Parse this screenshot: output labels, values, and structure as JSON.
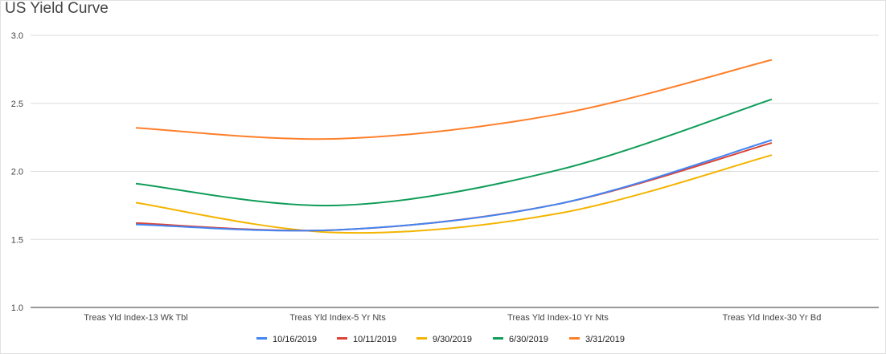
{
  "chart_data": {
    "type": "line",
    "title": "US Yield Curve",
    "xlabel": "",
    "ylabel": "",
    "categories": [
      "Treas Yld Index-13 Wk Tbl",
      "Treas Yld Index-5 Yr Nts",
      "Treas Yld Index-10 Yr Nts",
      "Treas Yld Index-30 Yr Bd"
    ],
    "ylim": [
      1.0,
      3.0
    ],
    "yticks": [
      "1.0",
      "1.5",
      "2.0",
      "2.5",
      "3.0"
    ],
    "grid": true,
    "smooth": true,
    "legend_position": "bottom",
    "series": [
      {
        "name": "10/16/2019",
        "color": "#4285f4",
        "values": [
          1.61,
          1.57,
          1.76,
          2.23
        ]
      },
      {
        "name": "10/11/2019",
        "color": "#db4437",
        "values": [
          1.62,
          1.57,
          1.76,
          2.21
        ]
      },
      {
        "name": "9/30/2019",
        "color": "#f4b400",
        "values": [
          1.77,
          1.55,
          1.69,
          2.12
        ]
      },
      {
        "name": "6/30/2019",
        "color": "#0f9d58",
        "values": [
          1.91,
          1.75,
          2.01,
          2.53
        ]
      },
      {
        "name": "3/31/2019",
        "color": "#ff7f2a",
        "values": [
          2.32,
          2.24,
          2.42,
          2.82
        ]
      }
    ]
  }
}
